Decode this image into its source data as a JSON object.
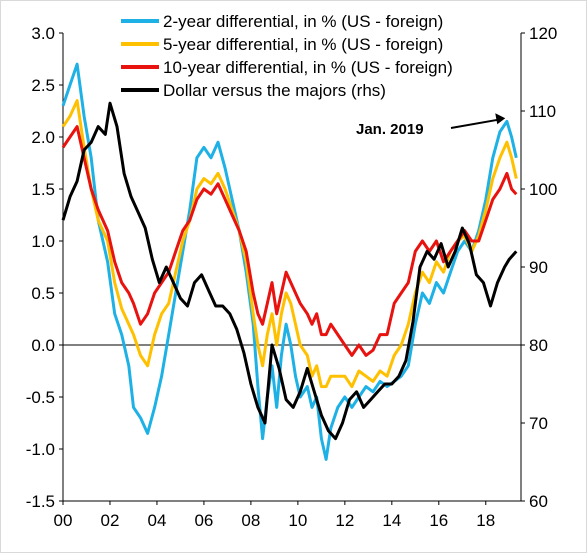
{
  "chart_data": {
    "type": "line",
    "title": "",
    "x_tick_labels": [
      "00",
      "02",
      "04",
      "06",
      "08",
      "10",
      "12",
      "14",
      "16",
      "18"
    ],
    "x_ticks": [
      2000,
      2002,
      2004,
      2006,
      2008,
      2010,
      2012,
      2014,
      2016,
      2018
    ],
    "xlim": [
      2000,
      2019.5
    ],
    "y_left": {
      "ylim": [
        -1.5,
        3.0
      ],
      "ticks": [
        "3.0",
        "2.5",
        "2.0",
        "1.5",
        "1.0",
        "0.5",
        "0.0",
        "-0.5",
        "-1.0",
        "-1.5"
      ]
    },
    "y_right": {
      "ylim": [
        60,
        120
      ],
      "ticks": [
        "120",
        "110",
        "100",
        "90",
        "80",
        "70",
        "60"
      ]
    },
    "legend": {
      "placement": "top"
    },
    "grid": false,
    "series": [
      {
        "name": "2-year differential, in % (US - foreign)",
        "axis": "left",
        "color": "#1EB1E6",
        "points": [
          [
            2000.0,
            2.3
          ],
          [
            2000.3,
            2.5
          ],
          [
            2000.6,
            2.7
          ],
          [
            2000.9,
            2.2
          ],
          [
            2001.2,
            1.8
          ],
          [
            2001.5,
            1.2
          ],
          [
            2001.9,
            0.8
          ],
          [
            2002.2,
            0.3
          ],
          [
            2002.5,
            0.1
          ],
          [
            2002.8,
            -0.2
          ],
          [
            2003.0,
            -0.6
          ],
          [
            2003.3,
            -0.7
          ],
          [
            2003.6,
            -0.85
          ],
          [
            2003.9,
            -0.6
          ],
          [
            2004.2,
            -0.3
          ],
          [
            2004.5,
            0.1
          ],
          [
            2004.8,
            0.5
          ],
          [
            2005.1,
            0.9
          ],
          [
            2005.4,
            1.3
          ],
          [
            2005.7,
            1.8
          ],
          [
            2006.0,
            1.9
          ],
          [
            2006.3,
            1.8
          ],
          [
            2006.6,
            1.95
          ],
          [
            2006.9,
            1.7
          ],
          [
            2007.2,
            1.4
          ],
          [
            2007.5,
            1.1
          ],
          [
            2007.8,
            0.7
          ],
          [
            2008.1,
            0.2
          ],
          [
            2008.3,
            -0.4
          ],
          [
            2008.5,
            -0.9
          ],
          [
            2008.7,
            -0.5
          ],
          [
            2008.9,
            -0.2
          ],
          [
            2009.1,
            -0.6
          ],
          [
            2009.3,
            -0.1
          ],
          [
            2009.5,
            0.2
          ],
          [
            2009.7,
            0.0
          ],
          [
            2009.9,
            -0.3
          ],
          [
            2010.1,
            -0.5
          ],
          [
            2010.4,
            -0.4
          ],
          [
            2010.6,
            -0.6
          ],
          [
            2010.8,
            -0.5
          ],
          [
            2011.0,
            -0.9
          ],
          [
            2011.2,
            -1.1
          ],
          [
            2011.4,
            -0.8
          ],
          [
            2011.7,
            -0.6
          ],
          [
            2012.0,
            -0.5
          ],
          [
            2012.3,
            -0.6
          ],
          [
            2012.6,
            -0.5
          ],
          [
            2012.9,
            -0.4
          ],
          [
            2013.2,
            -0.45
          ],
          [
            2013.5,
            -0.35
          ],
          [
            2013.8,
            -0.4
          ],
          [
            2014.1,
            -0.35
          ],
          [
            2014.4,
            -0.3
          ],
          [
            2014.7,
            -0.2
          ],
          [
            2015.0,
            0.2
          ],
          [
            2015.3,
            0.5
          ],
          [
            2015.6,
            0.4
          ],
          [
            2015.9,
            0.6
          ],
          [
            2016.2,
            0.5
          ],
          [
            2016.5,
            0.7
          ],
          [
            2016.8,
            0.9
          ],
          [
            2017.1,
            1.0
          ],
          [
            2017.4,
            0.9
          ],
          [
            2017.7,
            1.1
          ],
          [
            2018.0,
            1.4
          ],
          [
            2018.3,
            1.8
          ],
          [
            2018.6,
            2.05
          ],
          [
            2018.9,
            2.15
          ],
          [
            2019.1,
            2.0
          ],
          [
            2019.3,
            1.8
          ]
        ]
      },
      {
        "name": "5-year differential, in % (US - foreign)",
        "axis": "left",
        "color": "#FFC000",
        "points": [
          [
            2000.0,
            2.1
          ],
          [
            2000.3,
            2.2
          ],
          [
            2000.6,
            2.35
          ],
          [
            2000.9,
            1.9
          ],
          [
            2001.2,
            1.5
          ],
          [
            2001.5,
            1.2
          ],
          [
            2001.9,
            1.0
          ],
          [
            2002.2,
            0.6
          ],
          [
            2002.5,
            0.35
          ],
          [
            2002.8,
            0.2
          ],
          [
            2003.0,
            0.1
          ],
          [
            2003.3,
            -0.1
          ],
          [
            2003.6,
            -0.2
          ],
          [
            2003.9,
            0.1
          ],
          [
            2004.2,
            0.3
          ],
          [
            2004.5,
            0.4
          ],
          [
            2004.8,
            0.7
          ],
          [
            2005.1,
            1.0
          ],
          [
            2005.4,
            1.2
          ],
          [
            2005.7,
            1.5
          ],
          [
            2006.0,
            1.6
          ],
          [
            2006.3,
            1.55
          ],
          [
            2006.6,
            1.65
          ],
          [
            2006.9,
            1.5
          ],
          [
            2007.2,
            1.3
          ],
          [
            2007.5,
            1.1
          ],
          [
            2007.8,
            0.8
          ],
          [
            2008.1,
            0.3
          ],
          [
            2008.3,
            0.0
          ],
          [
            2008.5,
            -0.2
          ],
          [
            2008.7,
            0.1
          ],
          [
            2008.9,
            0.3
          ],
          [
            2009.1,
            0.0
          ],
          [
            2009.3,
            0.3
          ],
          [
            2009.5,
            0.5
          ],
          [
            2009.7,
            0.4
          ],
          [
            2009.9,
            0.2
          ],
          [
            2010.1,
            0.0
          ],
          [
            2010.4,
            -0.1
          ],
          [
            2010.6,
            -0.3
          ],
          [
            2010.8,
            -0.2
          ],
          [
            2011.0,
            -0.4
          ],
          [
            2011.2,
            -0.4
          ],
          [
            2011.4,
            -0.3
          ],
          [
            2011.7,
            -0.3
          ],
          [
            2012.0,
            -0.3
          ],
          [
            2012.3,
            -0.4
          ],
          [
            2012.6,
            -0.25
          ],
          [
            2012.9,
            -0.3
          ],
          [
            2013.2,
            -0.35
          ],
          [
            2013.5,
            -0.25
          ],
          [
            2013.8,
            -0.3
          ],
          [
            2014.1,
            -0.1
          ],
          [
            2014.4,
            0.0
          ],
          [
            2014.7,
            0.2
          ],
          [
            2015.0,
            0.5
          ],
          [
            2015.3,
            0.7
          ],
          [
            2015.6,
            0.6
          ],
          [
            2015.9,
            0.8
          ],
          [
            2016.2,
            0.7
          ],
          [
            2016.5,
            0.9
          ],
          [
            2016.8,
            1.0
          ],
          [
            2017.1,
            1.05
          ],
          [
            2017.4,
            0.9
          ],
          [
            2017.7,
            1.05
          ],
          [
            2018.0,
            1.3
          ],
          [
            2018.3,
            1.6
          ],
          [
            2018.6,
            1.8
          ],
          [
            2018.9,
            1.95
          ],
          [
            2019.1,
            1.8
          ],
          [
            2019.3,
            1.6
          ]
        ]
      },
      {
        "name": "10-year differential, in % (US - foreign)",
        "axis": "left",
        "color": "#E8120F",
        "points": [
          [
            2000.0,
            1.9
          ],
          [
            2000.3,
            2.0
          ],
          [
            2000.6,
            2.1
          ],
          [
            2000.9,
            1.8
          ],
          [
            2001.2,
            1.5
          ],
          [
            2001.5,
            1.3
          ],
          [
            2001.9,
            1.1
          ],
          [
            2002.2,
            0.8
          ],
          [
            2002.5,
            0.6
          ],
          [
            2002.8,
            0.5
          ],
          [
            2003.0,
            0.4
          ],
          [
            2003.3,
            0.2
          ],
          [
            2003.6,
            0.3
          ],
          [
            2003.9,
            0.5
          ],
          [
            2004.2,
            0.6
          ],
          [
            2004.5,
            0.7
          ],
          [
            2004.8,
            0.9
          ],
          [
            2005.1,
            1.1
          ],
          [
            2005.4,
            1.2
          ],
          [
            2005.7,
            1.4
          ],
          [
            2006.0,
            1.5
          ],
          [
            2006.3,
            1.45
          ],
          [
            2006.6,
            1.55
          ],
          [
            2006.9,
            1.4
          ],
          [
            2007.2,
            1.25
          ],
          [
            2007.5,
            1.1
          ],
          [
            2007.8,
            0.9
          ],
          [
            2008.1,
            0.5
          ],
          [
            2008.3,
            0.3
          ],
          [
            2008.5,
            0.2
          ],
          [
            2008.7,
            0.4
          ],
          [
            2008.9,
            0.6
          ],
          [
            2009.1,
            0.3
          ],
          [
            2009.3,
            0.5
          ],
          [
            2009.5,
            0.7
          ],
          [
            2009.7,
            0.6
          ],
          [
            2009.9,
            0.5
          ],
          [
            2010.1,
            0.4
          ],
          [
            2010.4,
            0.3
          ],
          [
            2010.6,
            0.2
          ],
          [
            2010.8,
            0.3
          ],
          [
            2011.0,
            0.1
          ],
          [
            2011.2,
            0.1
          ],
          [
            2011.4,
            0.2
          ],
          [
            2011.7,
            0.1
          ],
          [
            2012.0,
            0.0
          ],
          [
            2012.3,
            -0.1
          ],
          [
            2012.6,
            0.0
          ],
          [
            2012.9,
            -0.1
          ],
          [
            2013.2,
            -0.05
          ],
          [
            2013.5,
            0.1
          ],
          [
            2013.8,
            0.1
          ],
          [
            2014.1,
            0.4
          ],
          [
            2014.4,
            0.5
          ],
          [
            2014.7,
            0.6
          ],
          [
            2015.0,
            0.9
          ],
          [
            2015.3,
            1.0
          ],
          [
            2015.6,
            0.9
          ],
          [
            2015.9,
            1.0
          ],
          [
            2016.2,
            0.8
          ],
          [
            2016.5,
            0.9
          ],
          [
            2016.8,
            1.0
          ],
          [
            2017.1,
            1.1
          ],
          [
            2017.4,
            1.0
          ],
          [
            2017.7,
            1.0
          ],
          [
            2018.0,
            1.2
          ],
          [
            2018.3,
            1.4
          ],
          [
            2018.6,
            1.5
          ],
          [
            2018.9,
            1.65
          ],
          [
            2019.1,
            1.5
          ],
          [
            2019.3,
            1.45
          ]
        ]
      },
      {
        "name": "Dollar versus the majors (rhs)",
        "axis": "right",
        "color": "#000000",
        "points": [
          [
            2000.0,
            96
          ],
          [
            2000.3,
            99
          ],
          [
            2000.6,
            101
          ],
          [
            2000.9,
            105
          ],
          [
            2001.2,
            106
          ],
          [
            2001.5,
            108
          ],
          [
            2001.8,
            107
          ],
          [
            2002.0,
            111
          ],
          [
            2002.3,
            108
          ],
          [
            2002.6,
            102
          ],
          [
            2002.9,
            99
          ],
          [
            2003.2,
            97
          ],
          [
            2003.5,
            95
          ],
          [
            2003.8,
            91
          ],
          [
            2004.1,
            88
          ],
          [
            2004.4,
            90
          ],
          [
            2004.7,
            88
          ],
          [
            2005.0,
            86
          ],
          [
            2005.3,
            85
          ],
          [
            2005.6,
            88
          ],
          [
            2005.9,
            89
          ],
          [
            2006.2,
            87
          ],
          [
            2006.5,
            85
          ],
          [
            2006.8,
            85
          ],
          [
            2007.1,
            84
          ],
          [
            2007.4,
            82
          ],
          [
            2007.7,
            79
          ],
          [
            2008.0,
            75
          ],
          [
            2008.3,
            72
          ],
          [
            2008.6,
            70
          ],
          [
            2008.9,
            80
          ],
          [
            2009.2,
            77
          ],
          [
            2009.5,
            73
          ],
          [
            2009.8,
            72
          ],
          [
            2010.1,
            74
          ],
          [
            2010.4,
            77
          ],
          [
            2010.7,
            74
          ],
          [
            2011.0,
            71
          ],
          [
            2011.3,
            69
          ],
          [
            2011.6,
            68
          ],
          [
            2011.9,
            70
          ],
          [
            2012.2,
            73
          ],
          [
            2012.5,
            74
          ],
          [
            2012.8,
            72
          ],
          [
            2013.1,
            73
          ],
          [
            2013.4,
            74
          ],
          [
            2013.7,
            75
          ],
          [
            2014.0,
            75
          ],
          [
            2014.3,
            76
          ],
          [
            2014.6,
            78
          ],
          [
            2014.9,
            83
          ],
          [
            2015.2,
            90
          ],
          [
            2015.5,
            92
          ],
          [
            2015.8,
            91
          ],
          [
            2016.1,
            93
          ],
          [
            2016.4,
            90
          ],
          [
            2016.7,
            92
          ],
          [
            2017.0,
            95
          ],
          [
            2017.3,
            93
          ],
          [
            2017.6,
            89
          ],
          [
            2017.9,
            88
          ],
          [
            2018.2,
            85
          ],
          [
            2018.5,
            88
          ],
          [
            2018.8,
            90
          ],
          [
            2019.0,
            91
          ],
          [
            2019.3,
            92
          ]
        ]
      }
    ],
    "annotation": {
      "text": "Jan. 2019",
      "x": 2019.0,
      "y": 2.2,
      "axis": "left"
    }
  }
}
